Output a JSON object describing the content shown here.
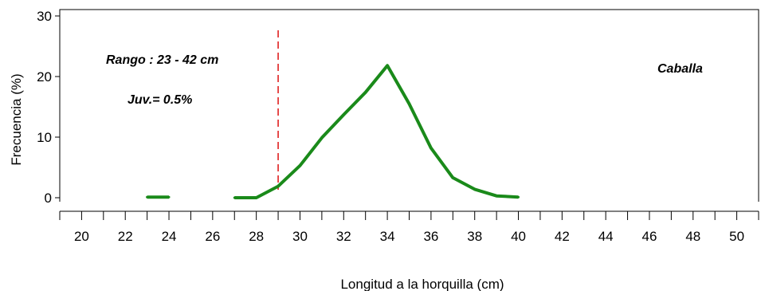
{
  "chart_data": {
    "type": "line",
    "title": "",
    "xlabel": "Longitud a la horquilla  (cm)",
    "ylabel": "Frecuencia (%)",
    "xlim": [
      19,
      51
    ],
    "ylim": [
      0,
      30
    ],
    "xticks": [
      20,
      22,
      24,
      26,
      28,
      30,
      32,
      34,
      36,
      38,
      40,
      42,
      44,
      46,
      48,
      50
    ],
    "yticks": [
      0,
      10,
      20,
      30
    ],
    "grid": false,
    "line_color": "#1a8a1a",
    "reference_line": {
      "x": 29,
      "color": "#e02020",
      "style": "dashed"
    },
    "series": [
      {
        "segments": [
          {
            "x": [
              23,
              24
            ],
            "y": [
              0.1,
              0.1
            ]
          },
          {
            "x": [
              27,
              28,
              29,
              30,
              31,
              32,
              33,
              34,
              35,
              36,
              37,
              38,
              39,
              40
            ],
            "y": [
              0.0,
              0.0,
              1.9,
              5.3,
              9.9,
              13.7,
              17.4,
              21.8,
              15.5,
              8.2,
              3.3,
              1.4,
              0.3,
              0.1
            ]
          }
        ]
      }
    ],
    "annotations": {
      "range": "Rango : 23 - 42 cm",
      "juveniles": "Juv.= 0.5%",
      "species": "Caballa"
    }
  }
}
